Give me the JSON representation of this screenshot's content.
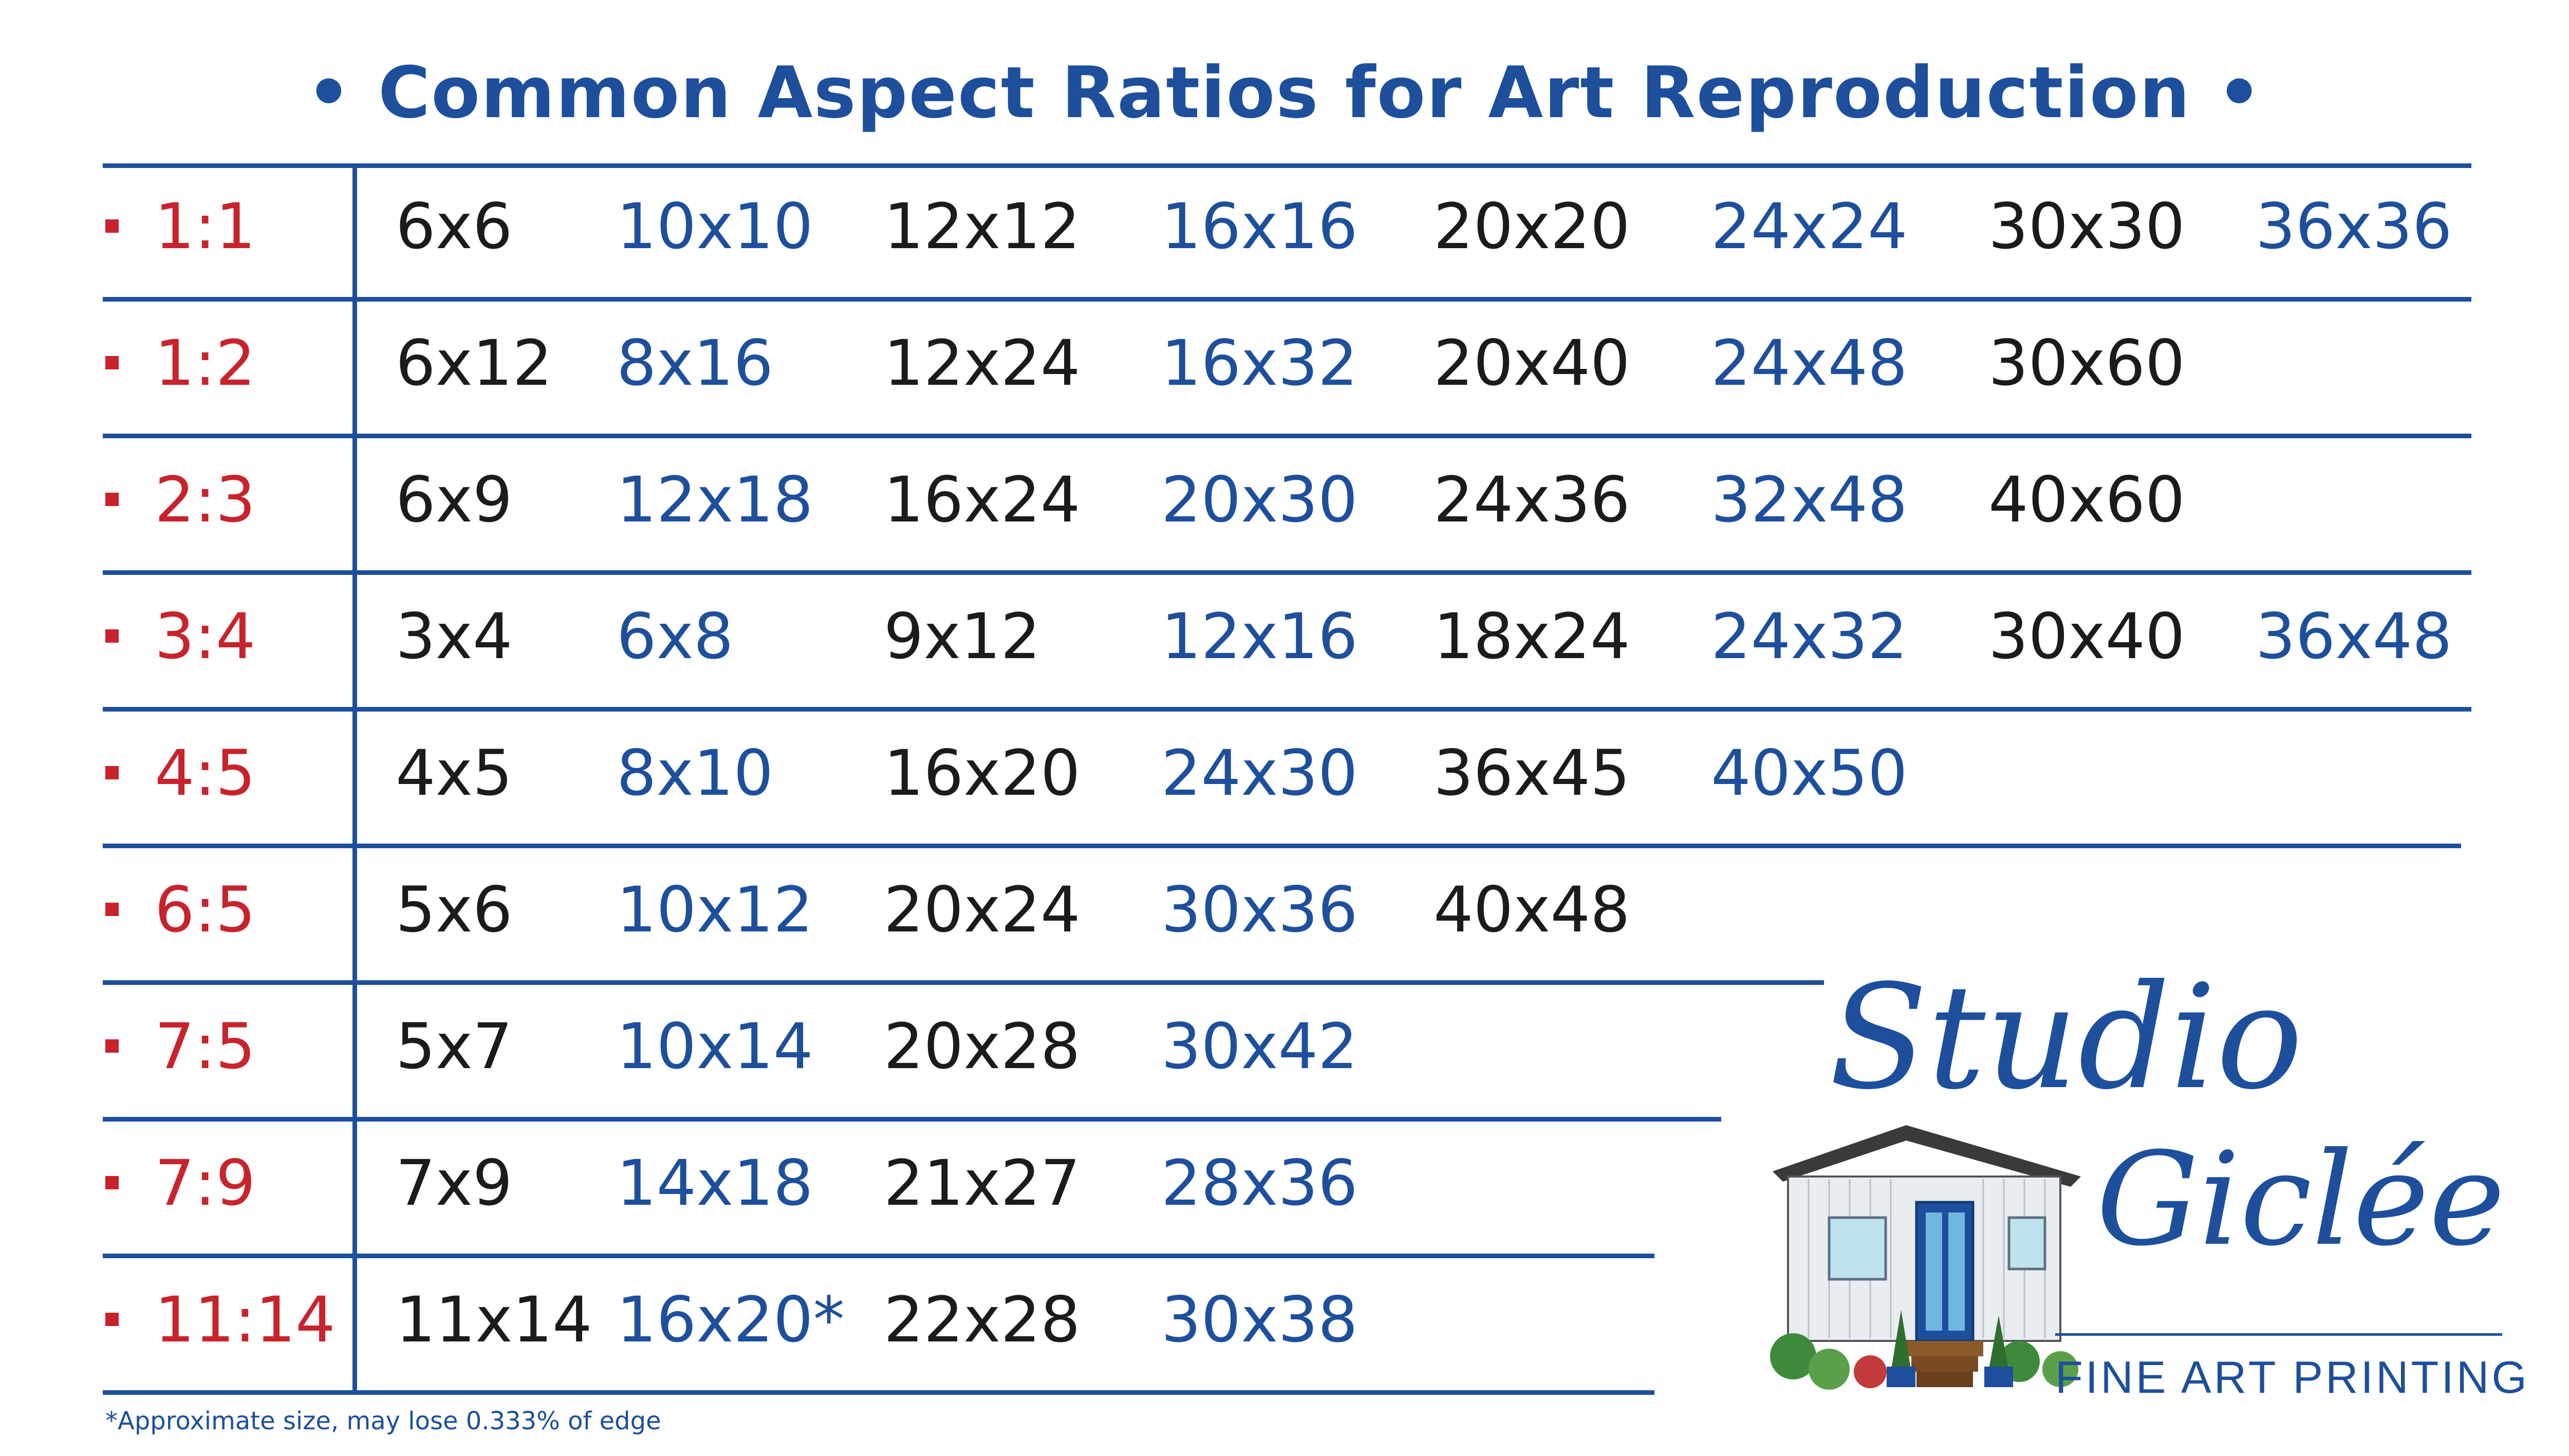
{
  "title": "• Common Aspect Ratios for Art Reproduction •",
  "rows": [
    {
      "ratio": "1:1",
      "sizes": [
        "6x6",
        "10x10",
        "12x12",
        "16x16",
        "20x20",
        "24x24",
        "30x30",
        "36x36"
      ]
    },
    {
      "ratio": "1:2",
      "sizes": [
        "6x12",
        "8x16",
        "12x24",
        "16x32",
        "20x40",
        "24x48",
        "30x60"
      ]
    },
    {
      "ratio": "2:3",
      "sizes": [
        "6x9",
        "12x18",
        "16x24",
        "20x30",
        "24x36",
        "32x48",
        "40x60"
      ]
    },
    {
      "ratio": "3:4",
      "sizes": [
        "3x4",
        "6x8",
        "9x12",
        "12x16",
        "18x24",
        "24x32",
        "30x40",
        "36x48"
      ]
    },
    {
      "ratio": "4:5",
      "sizes": [
        "4x5",
        "8x10",
        "16x20",
        "24x30",
        "36x45",
        "40x50"
      ]
    },
    {
      "ratio": "6:5",
      "sizes": [
        "5x6",
        "10x12",
        "20x24",
        "30x36",
        "40x48"
      ]
    },
    {
      "ratio": "7:5",
      "sizes": [
        "5x7",
        "10x14",
        "20x28",
        "30x42"
      ]
    },
    {
      "ratio": "7:9",
      "sizes": [
        "7x9",
        "14x18",
        "21x27",
        "28x36"
      ]
    },
    {
      "ratio": "11:14",
      "sizes": [
        "11x14",
        "16x20*",
        "22x28",
        "30x38"
      ]
    }
  ],
  "footnote": "*Approximate size, may lose 0.333% of edge",
  "logo": {
    "line1": "Studio",
    "line2": "Giclée",
    "tagline": "FINE ART PRINTING"
  },
  "colors": {
    "blue": "#1d4f9c",
    "red": "#c8232c",
    "dark": "#1b1b1b"
  }
}
